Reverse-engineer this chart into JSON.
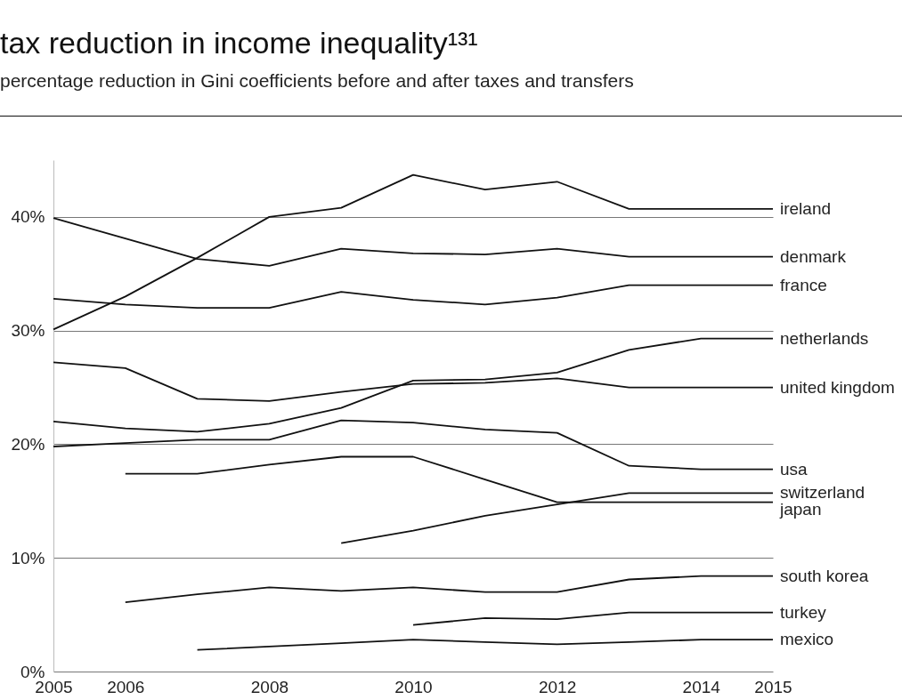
{
  "chart_data": {
    "type": "line",
    "title": "tax reduction in income inequality¹³¹",
    "subtitle": "percentage reduction in Gini coefficients before and after taxes and transfers",
    "x": [
      2005,
      2006,
      2007,
      2008,
      2009,
      2010,
      2011,
      2012,
      2013,
      2014,
      2015
    ],
    "xlim": [
      2005,
      2015
    ],
    "xticks": [
      2005,
      2006,
      2008,
      2010,
      2012,
      2014,
      2015
    ],
    "ylim": [
      0,
      45
    ],
    "yticks": [
      {
        "value": 0,
        "label": "0%"
      },
      {
        "value": 10,
        "label": "10%"
      },
      {
        "value": 20,
        "label": "20%"
      },
      {
        "value": 30,
        "label": "30%"
      },
      {
        "value": 40,
        "label": "40%"
      }
    ],
    "grid": "y",
    "series": [
      {
        "name": "ireland",
        "color": "#111111",
        "values": [
          30.1,
          33.0,
          36.4,
          40.0,
          40.8,
          43.7,
          42.4,
          43.1,
          40.7,
          40.7,
          40.7
        ]
      },
      {
        "name": "denmark",
        "color": "#111111",
        "values": [
          39.9,
          38.1,
          36.3,
          35.7,
          37.2,
          36.8,
          36.7,
          37.2,
          36.5,
          36.5,
          36.5
        ]
      },
      {
        "name": "france",
        "color": "#111111",
        "values": [
          32.8,
          32.3,
          32.0,
          32.0,
          33.4,
          32.7,
          32.3,
          32.9,
          34.0,
          34.0,
          34.0
        ]
      },
      {
        "name": "netherlands",
        "color": "#111111",
        "values": [
          22.0,
          21.4,
          21.1,
          21.8,
          23.2,
          25.6,
          25.7,
          26.3,
          28.3,
          29.3,
          29.3
        ]
      },
      {
        "name": "united kingdom",
        "color": "#111111",
        "values": [
          27.2,
          26.7,
          24.0,
          23.8,
          24.6,
          25.3,
          25.4,
          25.8,
          25.0,
          25.0,
          25.0
        ]
      },
      {
        "name": "usa",
        "color": "#111111",
        "values": [
          19.8,
          20.1,
          20.4,
          20.4,
          22.1,
          21.9,
          21.3,
          21.0,
          18.1,
          17.8,
          17.8
        ]
      },
      {
        "name": "switzerland",
        "color": "#111111",
        "values": [
          null,
          null,
          null,
          null,
          11.3,
          12.4,
          13.7,
          14.7,
          15.7,
          15.7,
          15.7
        ]
      },
      {
        "name": "japan",
        "color": "#111111",
        "values": [
          null,
          17.4,
          17.4,
          18.2,
          18.9,
          18.9,
          16.9,
          14.9,
          14.9,
          14.9,
          14.9
        ]
      },
      {
        "name": "south korea",
        "color": "#111111",
        "values": [
          null,
          6.1,
          6.8,
          7.4,
          7.1,
          7.4,
          7.0,
          7.0,
          8.1,
          8.4,
          8.4
        ]
      },
      {
        "name": "turkey",
        "color": "#111111",
        "values": [
          null,
          null,
          null,
          null,
          null,
          4.1,
          4.7,
          4.6,
          5.2,
          5.2,
          5.2
        ]
      },
      {
        "name": "mexico",
        "color": "#111111",
        "values": [
          null,
          null,
          1.9,
          2.2,
          2.5,
          2.8,
          2.6,
          2.4,
          2.6,
          2.8,
          2.8
        ]
      }
    ]
  }
}
